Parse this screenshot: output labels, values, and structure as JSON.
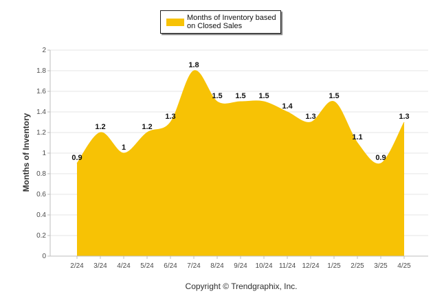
{
  "legend": {
    "series_name": "Months of Inventory based\non Closed Sales"
  },
  "chart_data": {
    "type": "area",
    "categories": [
      "2/24",
      "3/24",
      "4/24",
      "5/24",
      "6/24",
      "7/24",
      "8/24",
      "9/24",
      "10/24",
      "11/24",
      "12/24",
      "1/25",
      "2/25",
      "3/25",
      "4/25"
    ],
    "series": [
      {
        "name": "Months of Inventory based on Closed Sales",
        "values": [
          0.9,
          1.2,
          1.0,
          1.2,
          1.3,
          1.8,
          1.5,
          1.5,
          1.5,
          1.4,
          1.3,
          1.5,
          1.1,
          0.9,
          1.3
        ]
      }
    ],
    "data_labels": [
      "0.9",
      "1.2",
      "1",
      "1.2",
      "1.3",
      "1.8",
      "1.5",
      "1.5",
      "1.5",
      "1.4",
      "1.3",
      "1.5",
      "1.1",
      "0.9",
      "1.3"
    ],
    "ylabel": "Months of Inventory",
    "ylim": [
      0,
      2
    ],
    "y_ticks": [
      "0",
      "0.2",
      "0.4",
      "0.6",
      "0.8",
      "1",
      "1.2",
      "1.4",
      "1.6",
      "1.8",
      "2"
    ],
    "grid": true,
    "legend_position": "top-center",
    "colors": {
      "area": "#f7c205",
      "grid": "#e6e6e6",
      "axis": "#bdbdbd"
    }
  },
  "footer": {
    "copyright": "Copyright © Trendgraphix, Inc."
  }
}
